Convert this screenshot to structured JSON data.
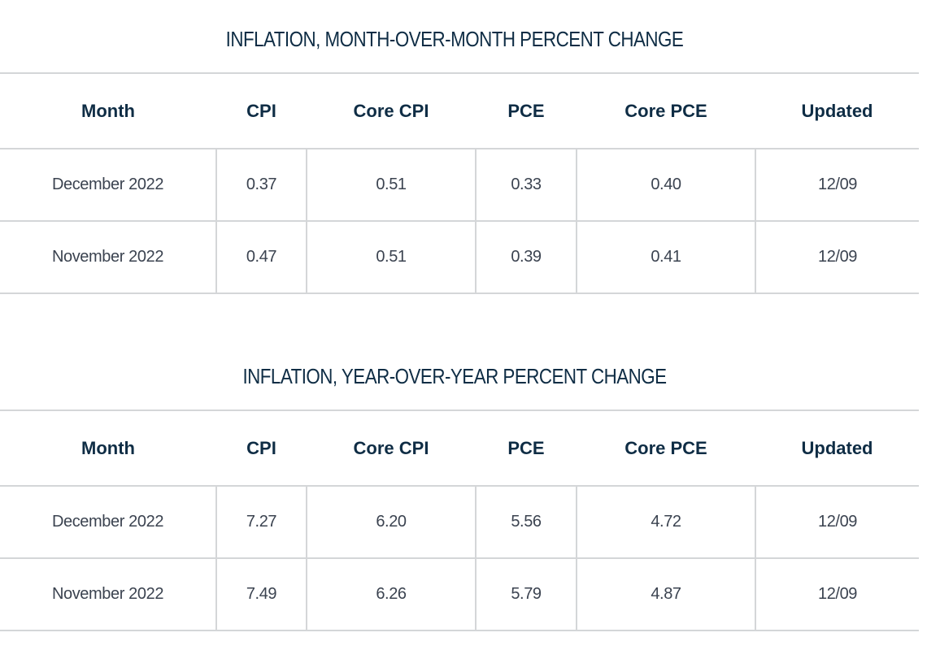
{
  "chart_data": [
    {
      "type": "table",
      "title": "INFLATION, MONTH-OVER-MONTH PERCENT CHANGE",
      "columns": [
        "Month",
        "CPI",
        "Core CPI",
        "PCE",
        "Core PCE",
        "Updated"
      ],
      "rows": [
        [
          "December 2022",
          "0.37",
          "0.51",
          "0.33",
          "0.40",
          "12/09"
        ],
        [
          "November 2022",
          "0.47",
          "0.51",
          "0.39",
          "0.41",
          "12/09"
        ]
      ]
    },
    {
      "type": "table",
      "title": "INFLATION, YEAR-OVER-YEAR PERCENT CHANGE",
      "columns": [
        "Month",
        "CPI",
        "Core CPI",
        "PCE",
        "Core PCE",
        "Updated"
      ],
      "rows": [
        [
          "December 2022",
          "7.27",
          "6.20",
          "5.56",
          "4.72",
          "12/09"
        ],
        [
          "November 2022",
          "7.49",
          "6.26",
          "5.79",
          "4.87",
          "12/09"
        ]
      ]
    }
  ],
  "colors": {
    "title": "#0f2d45",
    "header_text": "#0f2d45",
    "cell_text": "#3b4350",
    "rule": "#d4d6d8",
    "background": "#ffffff"
  }
}
